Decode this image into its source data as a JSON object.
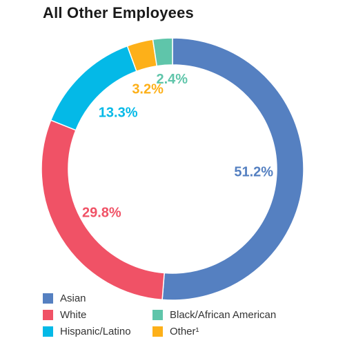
{
  "chart_data": {
    "type": "pie",
    "title": "All Other Employees",
    "slices": [
      {
        "label": "Asian",
        "value": 51.2,
        "display": "51.2%",
        "color": "#5580C1"
      },
      {
        "label": "White",
        "value": 29.8,
        "display": "29.8%",
        "color": "#F05266"
      },
      {
        "label": "Hispanic/Latino",
        "value": 13.3,
        "display": "13.3%",
        "color": "#04B9E7"
      },
      {
        "label": "Other¹",
        "value": 3.2,
        "display": "3.2%",
        "color": "#FDB019"
      },
      {
        "label": "Black/African American",
        "value": 2.4,
        "display": "2.4%",
        "color": "#5FC5AA"
      }
    ],
    "legend": [
      {
        "label": "Asian",
        "color": "#5580C1"
      },
      {
        "label": "White",
        "color": "#F05266"
      },
      {
        "label": "Hispanic/Latino",
        "color": "#04B9E7"
      },
      {
        "label": "Black/African American",
        "color": "#5FC5AA"
      },
      {
        "label": "Other¹",
        "color": "#FDB019"
      }
    ]
  }
}
